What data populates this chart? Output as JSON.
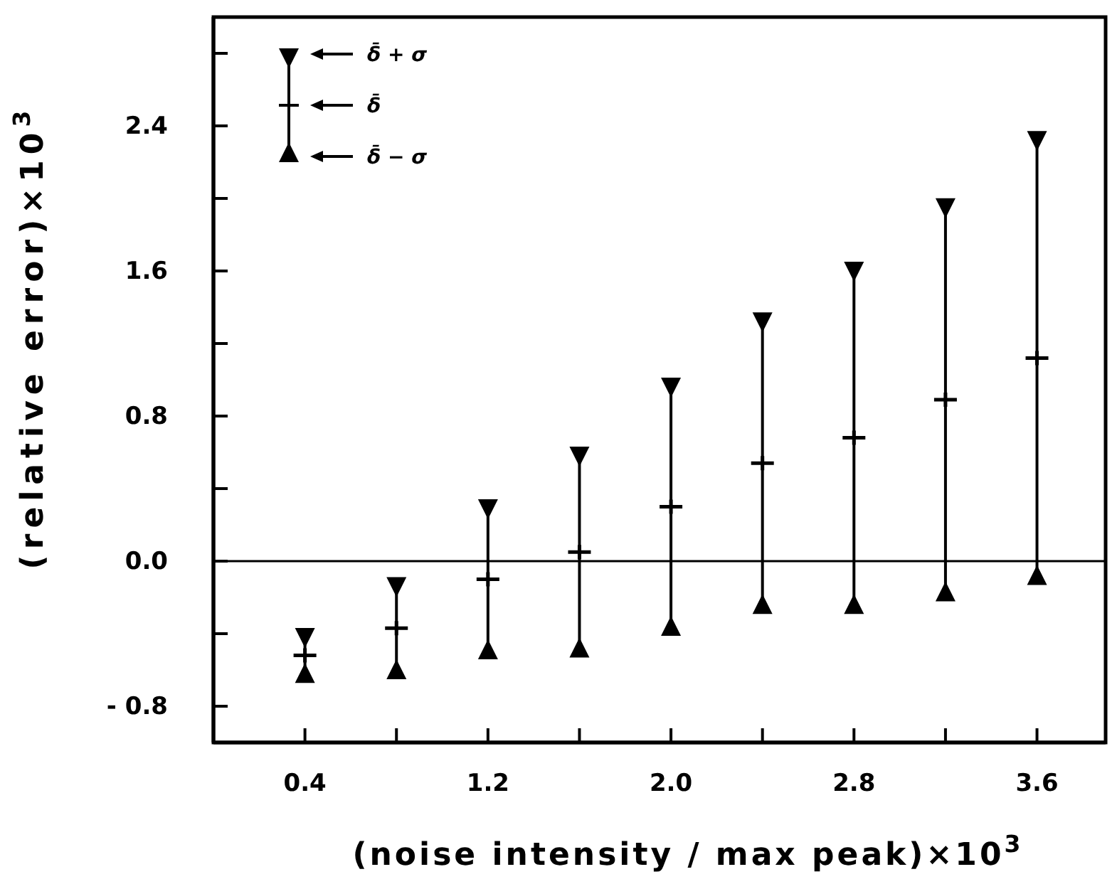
{
  "chart_data": {
    "type": "scatter",
    "xlabel": "(noise intensity / max peak)×10$^{3}$",
    "ylabel": "(relative error)×10$^{3}$",
    "x": [
      0.4,
      0.8,
      1.2,
      1.6,
      2.0,
      2.4,
      2.8,
      3.2,
      3.6
    ],
    "series": [
      {
        "color": "#000000",
        "marker": "cross",
        "values": [
          -0.52,
          -0.37,
          -0.1,
          0.05,
          0.3,
          0.54,
          0.68,
          0.89,
          1.12
        ],
        "errors": [
          0.12,
          0.25,
          0.41,
          0.55,
          0.68,
          0.8,
          0.94,
          1.08,
          1.22
        ]
      },
      {
        "color": "#000000",
        "marker": "triangle",
        "values": [
          -0.4,
          -0.12,
          0.31,
          0.6,
          0.98,
          1.34,
          1.62,
          1.97,
          2.34
        ]
      },
      {
        "color": "#000000",
        "marker": "triangle",
        "values": [
          -0.64,
          -0.62,
          -0.51,
          -0.5,
          -0.38,
          -0.26,
          -0.26,
          -0.19,
          -0.1
        ]
      }
    ],
    "xlim": [
      0,
      3.9
    ],
    "xticks": [
      0.4,
      {
        "value": 0.8,
        "label": null
      },
      1.2,
      {
        "value": 1.6,
        "label": null
      },
      {
        "value": 2,
        "label": "2.0"
      },
      {
        "value": 2.4,
        "label": null
      },
      2.8,
      {
        "value": 3.2,
        "label": null
      },
      3.6
    ],
    "ylim": [
      -1,
      3
    ],
    "yticks": [
      {
        "value": -0.8,
        "label": "- 0.8"
      },
      {
        "value": -0.4,
        "label": null
      },
      {
        "value": 0,
        "label": "0.0"
      },
      {
        "value": 0.4,
        "label": null
      },
      0.8,
      {
        "value": 1.2,
        "label": null
      },
      1.6,
      {
        "value": 2.0,
        "label": null
      },
      2.4,
      {
        "value": 2.8,
        "label": null
      }
    ],
    "ref_lines": [
      {
        "axis": "y",
        "value": 0,
        "color": "#000000"
      }
    ],
    "annotations": [
      "δ̄ + σ",
      "δ̄",
      "δ̄ − σ"
    ],
    "grid": false
  }
}
